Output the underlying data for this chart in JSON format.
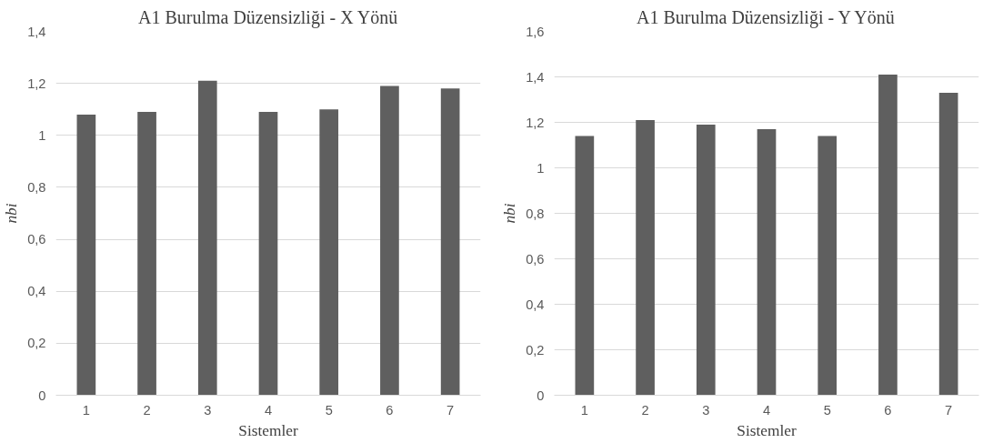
{
  "chart_data": [
    {
      "type": "bar",
      "title": "A1 Burulma Düzensizliği - X Yönü",
      "xlabel": "Sistemler",
      "ylabel": "nbi",
      "categories": [
        "1",
        "2",
        "3",
        "4",
        "5",
        "6",
        "7"
      ],
      "values": [
        1.08,
        1.09,
        1.21,
        1.09,
        1.1,
        1.19,
        1.18
      ],
      "color": "#5f5f5f",
      "ylim": [
        0,
        1.4
      ],
      "yticks": [
        0,
        {
          "value": 0.2,
          "label": "0,2"
        },
        {
          "value": 0.4,
          "label": "0,4"
        },
        {
          "value": 0.6,
          "label": "0,6"
        },
        {
          "value": 0.8,
          "label": "0,8"
        },
        1,
        {
          "value": 1.2,
          "label": "1,2"
        },
        {
          "value": 1.4,
          "label": "1,4"
        }
      ],
      "grid": "y"
    },
    {
      "type": "bar",
      "title": "A1 Burulma Düzensizliği - Y Yönü",
      "xlabel": "Sistemler",
      "ylabel": "nbi",
      "categories": [
        "1",
        "2",
        "3",
        "4",
        "5",
        "6",
        "7"
      ],
      "values": [
        1.14,
        1.21,
        1.19,
        1.17,
        1.14,
        1.41,
        1.33
      ],
      "color": "#5f5f5f",
      "ylim": [
        0,
        1.6
      ],
      "yticks": [
        0,
        {
          "value": 0.2,
          "label": "0,2"
        },
        {
          "value": 0.4,
          "label": "0,4"
        },
        {
          "value": 0.6,
          "label": "0,6"
        },
        {
          "value": 0.8,
          "label": "0,8"
        },
        1,
        {
          "value": 1.2,
          "label": "1,2"
        },
        {
          "value": 1.4,
          "label": "1,4"
        },
        {
          "value": 1.6,
          "label": "1,6"
        }
      ],
      "grid": "y"
    }
  ]
}
